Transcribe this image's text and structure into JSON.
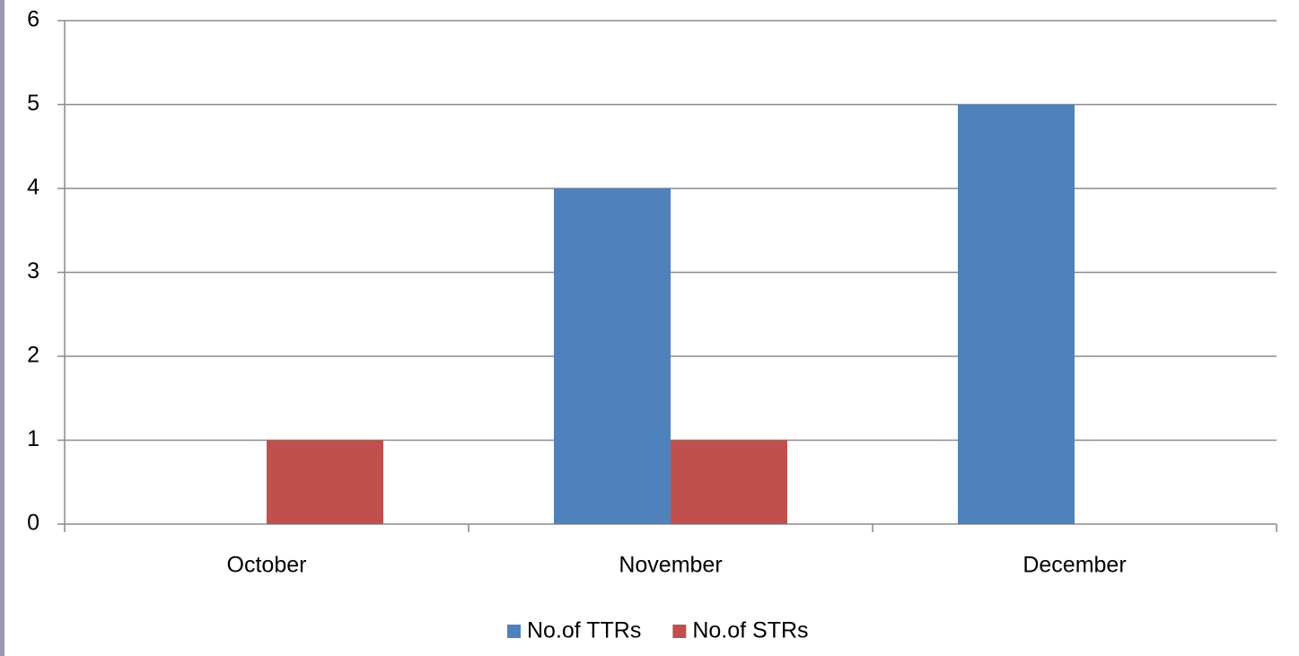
{
  "chart_data": {
    "type": "bar",
    "categories": [
      "October",
      "November",
      "December"
    ],
    "series": [
      {
        "name": "No.of TTRs",
        "color": "#4f81bd",
        "values": [
          0,
          4,
          5
        ]
      },
      {
        "name": "No.of STRs",
        "color": "#c0504d",
        "values": [
          1,
          1,
          0
        ]
      }
    ],
    "ylim": [
      0,
      6
    ],
    "yticks": [
      0,
      1,
      2,
      3,
      4,
      5,
      6
    ],
    "grid": true,
    "legend": "bottom"
  }
}
